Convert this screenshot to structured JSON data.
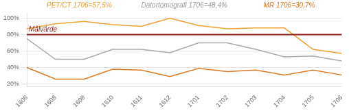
{
  "chart_data": {
    "type": "line",
    "categories": [
      "1606",
      "1608",
      "1609",
      "1610",
      "1611",
      "1612",
      "1701",
      "1702",
      "1703",
      "1704",
      "1705",
      "1706"
    ],
    "series": [
      {
        "color": "#f0a030",
        "values": [
          87,
          93,
          96,
          92,
          90,
          100,
          91,
          87,
          88,
          88,
          62,
          57
        ]
      },
      {
        "color": "#aaaaaa",
        "values": [
          75,
          50,
          50,
          62,
          62,
          58,
          70,
          70,
          62,
          53,
          54,
          48
        ]
      },
      {
        "color": "#e07820",
        "values": [
          40,
          26,
          26,
          38,
          37,
          29,
          39,
          35,
          37,
          31,
          37,
          31
        ]
      }
    ],
    "ylim": [
      17,
      107
    ],
    "yticks": [
      {
        "value": 20,
        "label": "20%"
      },
      {
        "value": 40,
        "label": "40%"
      },
      {
        "value": 60,
        "label": "60%"
      },
      {
        "value": 80,
        "label": "80%"
      },
      {
        "value": 100,
        "label": "100%"
      }
    ],
    "grid": true,
    "annotations": [
      {
        "type": "hline",
        "y": 80,
        "text": "Målvärde",
        "color": "#8b1a10"
      },
      {
        "text": "PET/CT 1706=57,5%",
        "color": "#f0a030"
      },
      {
        "text": "Datortomografi 1706=48,4%",
        "color": "#999999"
      },
      {
        "text": "MR 1706=30,7%",
        "color": "#e07820"
      }
    ]
  }
}
